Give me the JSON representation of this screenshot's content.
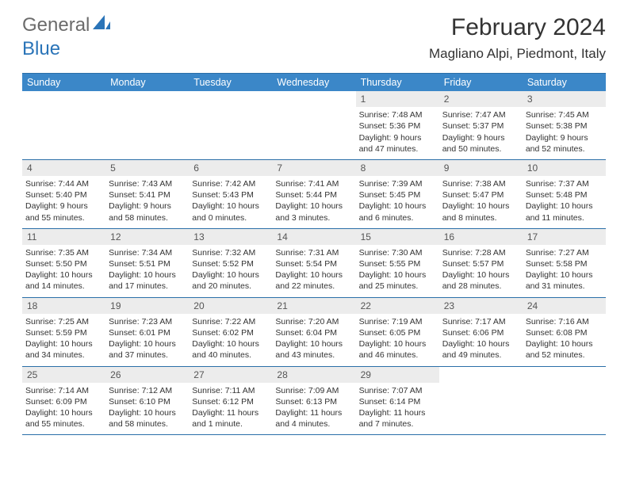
{
  "logo": {
    "part1": "General",
    "part2": "Blue"
  },
  "title": "February 2024",
  "location": "Magliano Alpi, Piedmont, Italy",
  "colors": {
    "header_bg": "#3b87c8",
    "border": "#2a6fa8",
    "daynum_bg": "#ececec",
    "text": "#333333",
    "logo_gray": "#6b6b6b",
    "logo_blue": "#2a74b8"
  },
  "day_names": [
    "Sunday",
    "Monday",
    "Tuesday",
    "Wednesday",
    "Thursday",
    "Friday",
    "Saturday"
  ],
  "weeks": [
    [
      {
        "empty": true
      },
      {
        "empty": true
      },
      {
        "empty": true
      },
      {
        "empty": true
      },
      {
        "num": "1",
        "sunrise": "Sunrise: 7:48 AM",
        "sunset": "Sunset: 5:36 PM",
        "daylight": "Daylight: 9 hours and 47 minutes."
      },
      {
        "num": "2",
        "sunrise": "Sunrise: 7:47 AM",
        "sunset": "Sunset: 5:37 PM",
        "daylight": "Daylight: 9 hours and 50 minutes."
      },
      {
        "num": "3",
        "sunrise": "Sunrise: 7:45 AM",
        "sunset": "Sunset: 5:38 PM",
        "daylight": "Daylight: 9 hours and 52 minutes."
      }
    ],
    [
      {
        "num": "4",
        "sunrise": "Sunrise: 7:44 AM",
        "sunset": "Sunset: 5:40 PM",
        "daylight": "Daylight: 9 hours and 55 minutes."
      },
      {
        "num": "5",
        "sunrise": "Sunrise: 7:43 AM",
        "sunset": "Sunset: 5:41 PM",
        "daylight": "Daylight: 9 hours and 58 minutes."
      },
      {
        "num": "6",
        "sunrise": "Sunrise: 7:42 AM",
        "sunset": "Sunset: 5:43 PM",
        "daylight": "Daylight: 10 hours and 0 minutes."
      },
      {
        "num": "7",
        "sunrise": "Sunrise: 7:41 AM",
        "sunset": "Sunset: 5:44 PM",
        "daylight": "Daylight: 10 hours and 3 minutes."
      },
      {
        "num": "8",
        "sunrise": "Sunrise: 7:39 AM",
        "sunset": "Sunset: 5:45 PM",
        "daylight": "Daylight: 10 hours and 6 minutes."
      },
      {
        "num": "9",
        "sunrise": "Sunrise: 7:38 AM",
        "sunset": "Sunset: 5:47 PM",
        "daylight": "Daylight: 10 hours and 8 minutes."
      },
      {
        "num": "10",
        "sunrise": "Sunrise: 7:37 AM",
        "sunset": "Sunset: 5:48 PM",
        "daylight": "Daylight: 10 hours and 11 minutes."
      }
    ],
    [
      {
        "num": "11",
        "sunrise": "Sunrise: 7:35 AM",
        "sunset": "Sunset: 5:50 PM",
        "daylight": "Daylight: 10 hours and 14 minutes."
      },
      {
        "num": "12",
        "sunrise": "Sunrise: 7:34 AM",
        "sunset": "Sunset: 5:51 PM",
        "daylight": "Daylight: 10 hours and 17 minutes."
      },
      {
        "num": "13",
        "sunrise": "Sunrise: 7:32 AM",
        "sunset": "Sunset: 5:52 PM",
        "daylight": "Daylight: 10 hours and 20 minutes."
      },
      {
        "num": "14",
        "sunrise": "Sunrise: 7:31 AM",
        "sunset": "Sunset: 5:54 PM",
        "daylight": "Daylight: 10 hours and 22 minutes."
      },
      {
        "num": "15",
        "sunrise": "Sunrise: 7:30 AM",
        "sunset": "Sunset: 5:55 PM",
        "daylight": "Daylight: 10 hours and 25 minutes."
      },
      {
        "num": "16",
        "sunrise": "Sunrise: 7:28 AM",
        "sunset": "Sunset: 5:57 PM",
        "daylight": "Daylight: 10 hours and 28 minutes."
      },
      {
        "num": "17",
        "sunrise": "Sunrise: 7:27 AM",
        "sunset": "Sunset: 5:58 PM",
        "daylight": "Daylight: 10 hours and 31 minutes."
      }
    ],
    [
      {
        "num": "18",
        "sunrise": "Sunrise: 7:25 AM",
        "sunset": "Sunset: 5:59 PM",
        "daylight": "Daylight: 10 hours and 34 minutes."
      },
      {
        "num": "19",
        "sunrise": "Sunrise: 7:23 AM",
        "sunset": "Sunset: 6:01 PM",
        "daylight": "Daylight: 10 hours and 37 minutes."
      },
      {
        "num": "20",
        "sunrise": "Sunrise: 7:22 AM",
        "sunset": "Sunset: 6:02 PM",
        "daylight": "Daylight: 10 hours and 40 minutes."
      },
      {
        "num": "21",
        "sunrise": "Sunrise: 7:20 AM",
        "sunset": "Sunset: 6:04 PM",
        "daylight": "Daylight: 10 hours and 43 minutes."
      },
      {
        "num": "22",
        "sunrise": "Sunrise: 7:19 AM",
        "sunset": "Sunset: 6:05 PM",
        "daylight": "Daylight: 10 hours and 46 minutes."
      },
      {
        "num": "23",
        "sunrise": "Sunrise: 7:17 AM",
        "sunset": "Sunset: 6:06 PM",
        "daylight": "Daylight: 10 hours and 49 minutes."
      },
      {
        "num": "24",
        "sunrise": "Sunrise: 7:16 AM",
        "sunset": "Sunset: 6:08 PM",
        "daylight": "Daylight: 10 hours and 52 minutes."
      }
    ],
    [
      {
        "num": "25",
        "sunrise": "Sunrise: 7:14 AM",
        "sunset": "Sunset: 6:09 PM",
        "daylight": "Daylight: 10 hours and 55 minutes."
      },
      {
        "num": "26",
        "sunrise": "Sunrise: 7:12 AM",
        "sunset": "Sunset: 6:10 PM",
        "daylight": "Daylight: 10 hours and 58 minutes."
      },
      {
        "num": "27",
        "sunrise": "Sunrise: 7:11 AM",
        "sunset": "Sunset: 6:12 PM",
        "daylight": "Daylight: 11 hours and 1 minute."
      },
      {
        "num": "28",
        "sunrise": "Sunrise: 7:09 AM",
        "sunset": "Sunset: 6:13 PM",
        "daylight": "Daylight: 11 hours and 4 minutes."
      },
      {
        "num": "29",
        "sunrise": "Sunrise: 7:07 AM",
        "sunset": "Sunset: 6:14 PM",
        "daylight": "Daylight: 11 hours and 7 minutes."
      },
      {
        "empty": true
      },
      {
        "empty": true
      }
    ]
  ]
}
